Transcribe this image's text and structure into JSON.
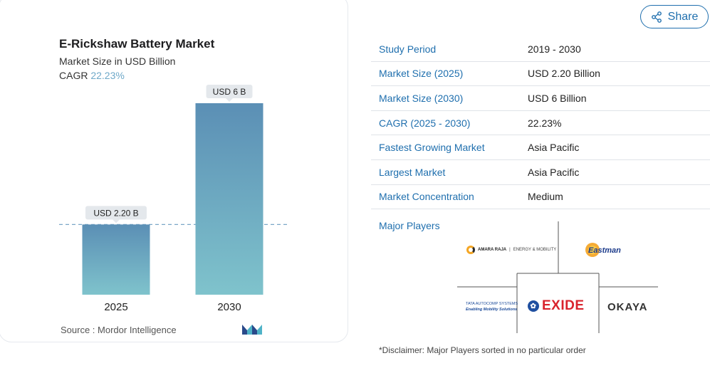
{
  "chart": {
    "title": "E-Rickshaw Battery Market",
    "subtitle": "Market Size in USD Billion",
    "cagr_label": "CAGR",
    "cagr_value": "22.23%",
    "source": "Source :  Mordor Intelligence"
  },
  "chart_data": {
    "type": "bar",
    "categories": [
      "2025",
      "2030"
    ],
    "values": [
      2.2,
      6
    ],
    "data_labels": [
      "USD 2.20 B",
      "USD 6 B"
    ],
    "title": "E-Rickshaw Battery Market",
    "subtitle": "Market Size in USD Billion",
    "xlabel": "",
    "ylabel": "",
    "ylim": [
      0,
      6.2
    ],
    "grid": false,
    "reference_line": "dashed line at 2025 value",
    "colors": {
      "bar_top": "#5b8fb5",
      "bar_bottom": "#7fc3cc",
      "reference": "#7aa7c7"
    }
  },
  "share": {
    "label": "Share",
    "icon": "share-icon"
  },
  "summary_table": [
    {
      "key": "Study Period",
      "value": "2019 - 2030"
    },
    {
      "key": "Market Size (2025)",
      "value": "USD 2.20 Billion"
    },
    {
      "key": "Market Size (2030)",
      "value": "USD 6 Billion"
    },
    {
      "key": "CAGR (2025 - 2030)",
      "value": "22.23%"
    },
    {
      "key": "Fastest Growing Market",
      "value": "Asia Pacific"
    },
    {
      "key": "Largest Market",
      "value": "Asia Pacific"
    },
    {
      "key": "Market Concentration",
      "value": "Medium"
    }
  ],
  "major_players": {
    "label": "Major Players",
    "amara_raja": {
      "name": "AMARA RAJA",
      "tagline": "ENERGY & MOBILITY"
    },
    "eastman": {
      "name": "Eastman"
    },
    "tata": {
      "name": "TATA AUTOCOMP SYSTEMS",
      "tagline": "Enabling Mobility Solutions"
    },
    "exide": {
      "name": "EXIDE"
    },
    "okaya": {
      "name": "OKAYA"
    }
  },
  "disclaimer": "*Disclaimer: Major Players sorted in no particular order",
  "colors": {
    "accent": "#1f6fae",
    "cagr": "#6fa9c9"
  }
}
